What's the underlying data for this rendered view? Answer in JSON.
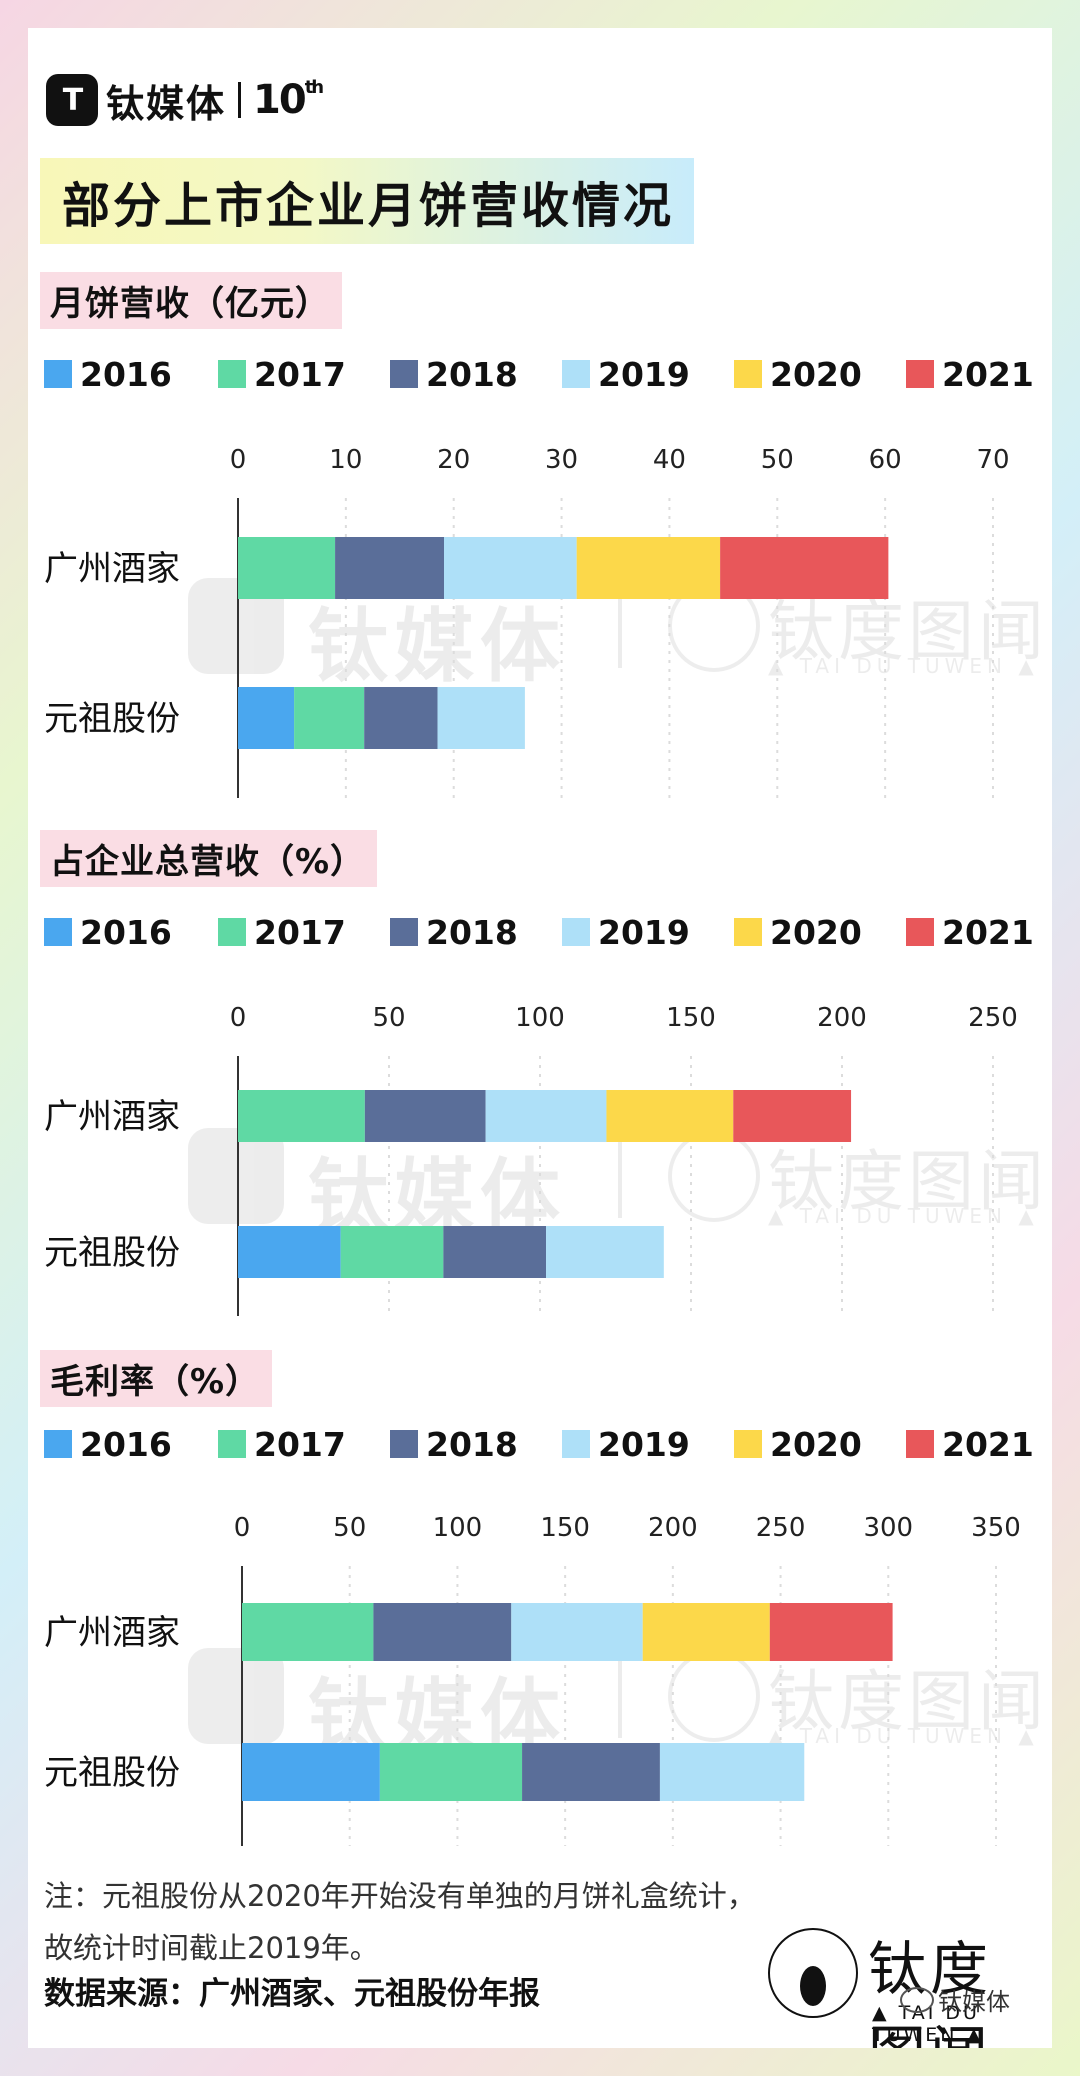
{
  "header": {
    "logo_mark": "T",
    "logo_text": "钛媒体",
    "logo_anniv": "10",
    "logo_anniv_sup": "th",
    "title": "部分上市企业月饼营收情况"
  },
  "colors": {
    "2016": "#4aa7ef",
    "2017": "#5fd9a4",
    "2018": "#5a6e99",
    "2019": "#aee0f8",
    "2020": "#fcd84a",
    "2021": "#e8575a"
  },
  "legend": [
    "2016",
    "2017",
    "2018",
    "2019",
    "2020",
    "2021"
  ],
  "chart_data": [
    {
      "type": "bar",
      "stacked": true,
      "orientation": "horizontal",
      "title": "月饼营收（亿元）",
      "categories": [
        "广州酒家",
        "元祖股份"
      ],
      "xlim": [
        0,
        70
      ],
      "ticks": [
        "0",
        "10",
        "20",
        "30",
        "40",
        "50",
        "60",
        "70"
      ],
      "series": [
        {
          "name": "2016",
          "values": [
            0,
            5.2
          ]
        },
        {
          "name": "2017",
          "values": [
            9.0,
            6.5
          ]
        },
        {
          "name": "2018",
          "values": [
            10.1,
            6.8
          ]
        },
        {
          "name": "2019",
          "values": [
            12.3,
            8.1
          ]
        },
        {
          "name": "2020",
          "values": [
            13.3,
            0
          ]
        },
        {
          "name": "2021",
          "values": [
            15.6,
            0
          ]
        }
      ]
    },
    {
      "type": "bar",
      "stacked": true,
      "orientation": "horizontal",
      "title": "占企业总营收（%）",
      "categories": [
        "广州酒家",
        "元祖股份"
      ],
      "xlim": [
        0,
        250
      ],
      "ticks": [
        "0",
        "50",
        "100",
        "150",
        "200",
        "250"
      ],
      "series": [
        {
          "name": "2016",
          "values": [
            0,
            34
          ]
        },
        {
          "name": "2017",
          "values": [
            42,
            34
          ]
        },
        {
          "name": "2018",
          "values": [
            40,
            34
          ]
        },
        {
          "name": "2019",
          "values": [
            40,
            39
          ]
        },
        {
          "name": "2020",
          "values": [
            42,
            0
          ]
        },
        {
          "name": "2021",
          "values": [
            39,
            0
          ]
        }
      ]
    },
    {
      "type": "bar",
      "stacked": true,
      "orientation": "horizontal",
      "title": "毛利率（%）",
      "categories": [
        "广州酒家",
        "元祖股份"
      ],
      "xlim": [
        0,
        350
      ],
      "ticks": [
        "0",
        "50",
        "100",
        "150",
        "200",
        "250",
        "300",
        "350"
      ],
      "series": [
        {
          "name": "2016",
          "values": [
            0,
            64
          ]
        },
        {
          "name": "2017",
          "values": [
            61,
            66
          ]
        },
        {
          "name": "2018",
          "values": [
            64,
            64
          ]
        },
        {
          "name": "2019",
          "values": [
            61,
            67
          ]
        },
        {
          "name": "2020",
          "values": [
            59,
            0
          ]
        },
        {
          "name": "2021",
          "values": [
            57,
            0
          ]
        }
      ]
    }
  ],
  "note_lines": [
    "注：元祖股份从2020年开始没有单独的月饼礼盒统计，",
    "故统计时间截止2019年。"
  ],
  "source": "数据来源：广州酒家、元祖股份年报",
  "watermark": {
    "text": "钛媒体",
    "text2": "钛度图闻",
    "sub": "▲ TAI DU TUWEN ▲"
  },
  "brand": {
    "text": "钛度图闻",
    "sub": "▲ TAI DU TUWEN ▲"
  },
  "wechat": "钛媒体"
}
